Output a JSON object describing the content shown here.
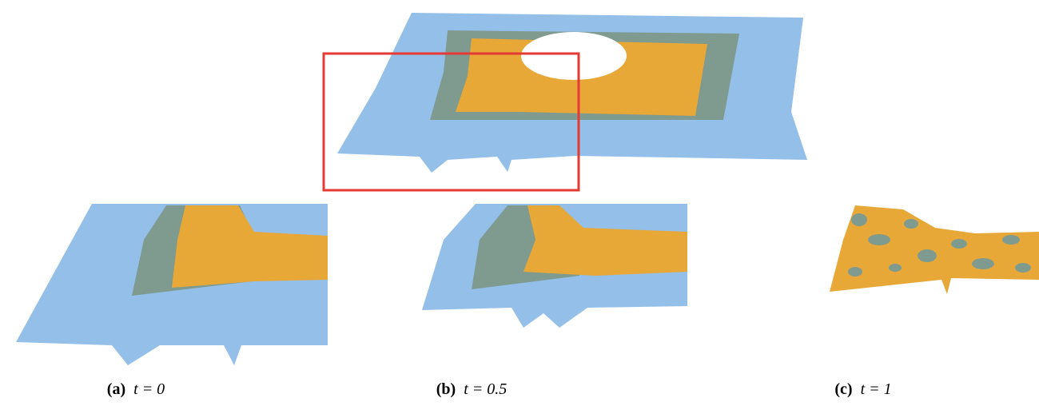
{
  "captions": [
    {
      "label": "(a)",
      "text": "t = 0"
    },
    {
      "label": "(b)",
      "text": "t = 0.5"
    },
    {
      "label": "(c)",
      "text": "t = 1"
    }
  ]
}
